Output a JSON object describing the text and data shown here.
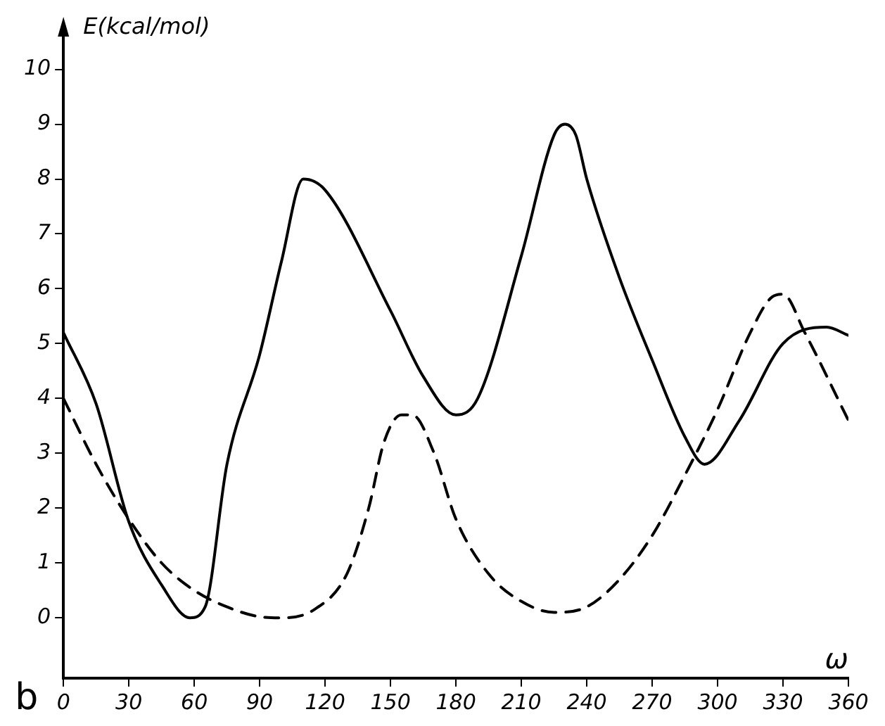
{
  "chart_data": {
    "type": "line",
    "xlabel": "ω",
    "ylabel": "E(kcal/mol)",
    "annotations": [
      "b"
    ],
    "xlim": [
      0,
      360
    ],
    "ylim": [
      -1.1,
      10.7
    ],
    "xticks": [
      0,
      30,
      60,
      90,
      120,
      150,
      180,
      210,
      240,
      270,
      300,
      330,
      360
    ],
    "yticks": [
      0,
      1,
      2,
      3,
      4,
      5,
      6,
      7,
      8,
      9,
      10
    ],
    "grid": false,
    "legend": false,
    "marker": "none",
    "series": [
      {
        "color": "#000000",
        "line_style": "solid",
        "x": [
          0,
          15,
          30,
          45,
          58,
          65,
          75,
          90,
          100,
          110,
          120,
          150,
          165,
          180,
          190,
          210,
          225,
          230,
          235,
          240,
          255,
          270,
          285,
          294,
          310,
          330,
          350,
          360
        ],
        "values": [
          5.2,
          3.9,
          1.75,
          0.6,
          0,
          0.2,
          2.8,
          4.8,
          6.5,
          8,
          7.8,
          5.6,
          4.4,
          3.7,
          4,
          6.6,
          8.8,
          9,
          8.8,
          8,
          6.2,
          4.7,
          3.3,
          2.8,
          3.6,
          5,
          5.3,
          5.15
        ]
      },
      {
        "color": "#000000",
        "line_style": "dashed",
        "x": [
          0,
          15,
          30,
          45,
          60,
          75,
          90,
          100,
          115,
          130,
          140,
          147,
          155,
          160,
          170,
          180,
          195,
          210,
          225,
          240,
          255,
          270,
          285,
          300,
          315,
          325,
          330,
          340,
          360
        ],
        "values": [
          4,
          2.8,
          1.8,
          1,
          0.5,
          0.2,
          0.02,
          0,
          0.15,
          0.8,
          2,
          3.2,
          3.7,
          3.7,
          3,
          1.8,
          0.8,
          0.3,
          0.1,
          0.2,
          0.7,
          1.5,
          2.6,
          3.8,
          5.2,
          5.85,
          5.9,
          5.2,
          3.6
        ]
      }
    ]
  }
}
